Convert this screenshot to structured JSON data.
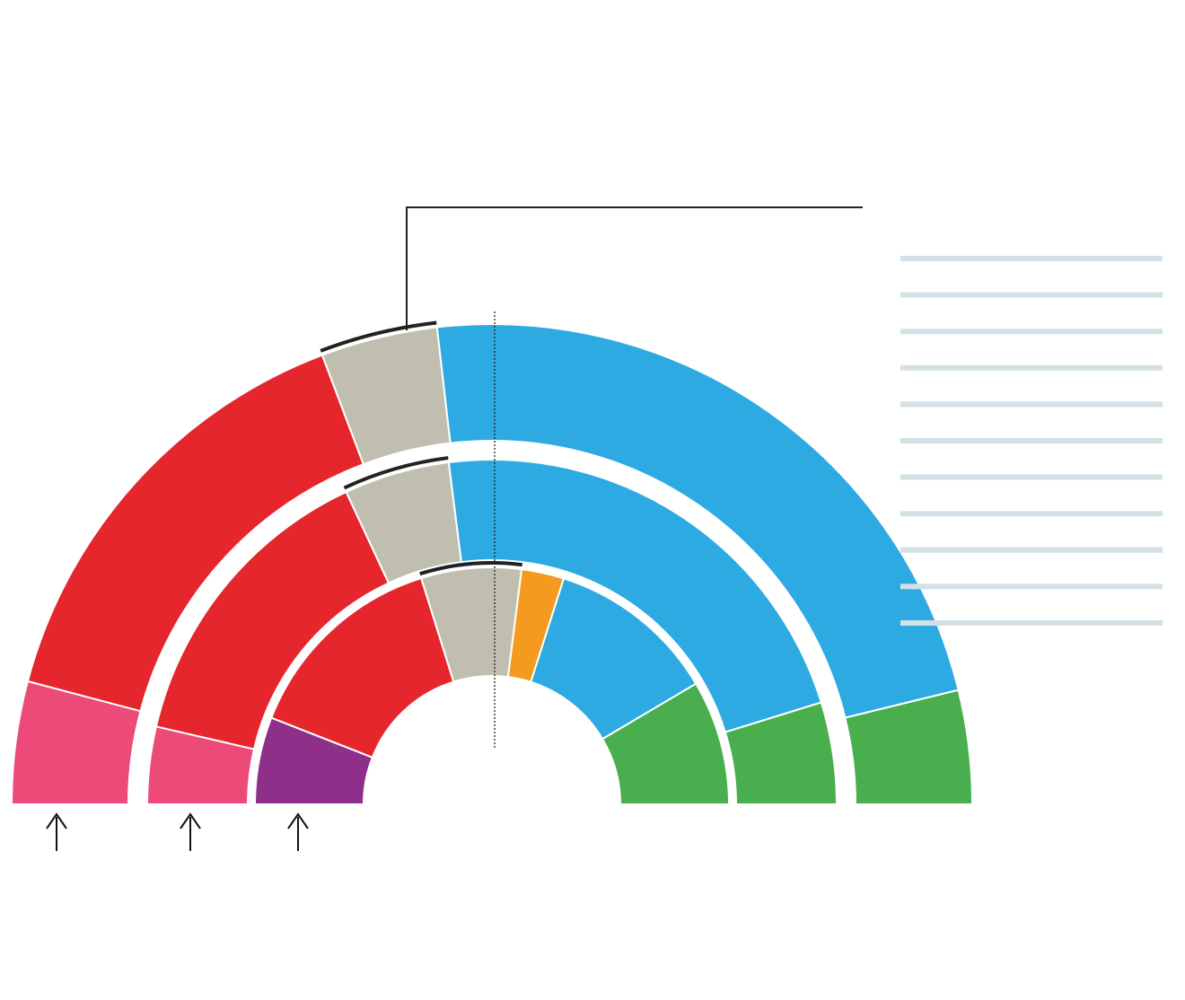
{
  "chart_data": {
    "type": "semicircle-parliament",
    "title": "",
    "rings": [
      {
        "name": "",
        "segments": [
          {
            "name": "",
            "share": 0.0825,
            "color": "#ec4b7a"
          },
          {
            "name": "",
            "share": 0.3025,
            "color": "#e5262c"
          },
          {
            "name": "",
            "share": 0.0785,
            "color": "#c0bfaf"
          },
          {
            "name": "",
            "share": 0.46,
            "color": "#2eaae2"
          },
          {
            "name": "",
            "share": 0.0765,
            "color": "#49ae4d"
          }
        ]
      },
      {
        "name": "",
        "segments": [
          {
            "name": "",
            "share": 0.0725,
            "color": "#ec4b7a"
          },
          {
            "name": "",
            "share": 0.2885,
            "color": "#e5262c"
          },
          {
            "name": "",
            "share": 0.099,
            "color": "#c0bfaf"
          },
          {
            "name": "",
            "share": 0.4445,
            "color": "#2eaae2"
          },
          {
            "name": "",
            "share": 0.0955,
            "color": "#49ae4d"
          }
        ]
      },
      {
        "name": "",
        "segments": [
          {
            "name": "",
            "share": 0.119,
            "color": "#8e2f8a"
          },
          {
            "name": "",
            "share": 0.2845,
            "color": "#e5262c"
          },
          {
            "name": "",
            "share": 0.1365,
            "color": "#c0bfaf"
          },
          {
            "name": "",
            "share": 0.058,
            "color": "#f39a1f"
          },
          {
            "name": "",
            "share": 0.232,
            "color": "#2eaae2"
          },
          {
            "name": "",
            "share": 0.17,
            "color": "#49ae4d"
          }
        ]
      }
    ],
    "highlight_bracket_color": "#222222",
    "majority_line": {
      "share": 0.5,
      "label": ""
    },
    "legend_rows": 11,
    "legend_color": "#d3e0e5",
    "arrow_markers": 3
  }
}
